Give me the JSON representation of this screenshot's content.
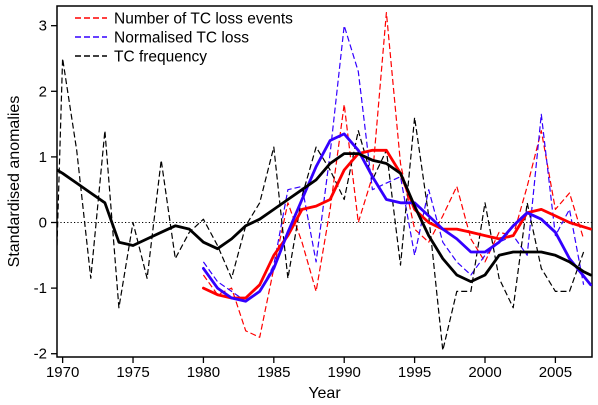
{
  "chart_data": {
    "type": "line",
    "title": "",
    "xlabel": "Year",
    "ylabel": "Standardised anomalies",
    "xlim": [
      1969.6,
      2007.6
    ],
    "ylim": [
      -2.05,
      3.3
    ],
    "xticks": [
      "1970",
      "1975",
      "1980",
      "1985",
      "1990",
      "1995",
      "2000",
      "2005"
    ],
    "yticks": [
      "-2",
      "-1",
      "0",
      "1",
      "2",
      "3"
    ],
    "xtick_values": [
      1970,
      1975,
      1980,
      1985,
      1990,
      1995,
      2000,
      2005
    ],
    "ytick_values": [
      -2,
      -1,
      0,
      1,
      2,
      3
    ],
    "reference_line": {
      "y": 0,
      "style": "dotted"
    },
    "grid": false,
    "legend_position": "top-left",
    "legend": [
      {
        "label": "Number of TC loss events",
        "color": "#ff0000",
        "style": "dashed"
      },
      {
        "label": "Normalised TC loss",
        "color": "#3300ff",
        "style": "dashed"
      },
      {
        "label": "TC frequency",
        "color": "#000000",
        "style": "dashed"
      }
    ],
    "series": [
      {
        "name": "Number of TC loss events",
        "color": "#ff0000",
        "style": "dashed",
        "x": [
          1980,
          1981,
          1982,
          1983,
          1984,
          1985,
          1986,
          1987,
          1988,
          1989,
          1990,
          1991,
          1992,
          1993,
          1994,
          1995,
          1996,
          1997,
          1998,
          1999,
          2000,
          2001,
          2002,
          2003,
          2004,
          2005,
          2006,
          2007
        ],
        "y": [
          -0.8,
          -1.1,
          -1.0,
          -1.65,
          -1.75,
          -0.7,
          0.3,
          -0.3,
          -1.05,
          0.2,
          1.8,
          0.0,
          0.7,
          3.2,
          0.9,
          -0.1,
          -0.3,
          0.1,
          0.55,
          -0.25,
          -0.6,
          -0.15,
          -0.2,
          0.55,
          1.4,
          0.2,
          0.45,
          -0.25
        ]
      },
      {
        "name": "Normalised TC loss",
        "color": "#3300ff",
        "style": "dashed",
        "x": [
          1980,
          1981,
          1982,
          1983,
          1984,
          1985,
          1986,
          1987,
          1988,
          1989,
          1990,
          1991,
          1992,
          1993,
          1994,
          1995,
          1996,
          1997,
          1998,
          1999,
          2000,
          2001,
          2002,
          2003,
          2004,
          2005,
          2006,
          2007
        ],
        "y": [
          -0.6,
          -0.9,
          -1.05,
          -1.2,
          -1.05,
          -0.65,
          0.5,
          0.55,
          -0.6,
          1.05,
          3.0,
          2.3,
          0.5,
          0.6,
          0.7,
          -0.5,
          0.5,
          -0.3,
          -0.6,
          -0.8,
          -0.5,
          -0.3,
          -0.2,
          -0.5,
          1.65,
          -0.2,
          0.2,
          -0.95
        ]
      },
      {
        "name": "TC frequency",
        "color": "#000000",
        "style": "dashed",
        "x": [
          1969.6,
          1970,
          1971,
          1972,
          1973,
          1974,
          1975,
          1976,
          1977,
          1978,
          1979,
          1980,
          1981,
          1982,
          1983,
          1984,
          1985,
          1986,
          1987,
          1988,
          1989,
          1990,
          1991,
          1992,
          1993,
          1994,
          1995,
          1996,
          1997,
          1998,
          1999,
          2000,
          2001,
          2002,
          2003,
          2004,
          2005,
          2006,
          2007
        ],
        "y": [
          -0.35,
          2.5,
          1.1,
          -0.85,
          1.4,
          -1.3,
          0.0,
          -0.85,
          0.95,
          -0.55,
          -0.15,
          0.05,
          -0.35,
          -0.85,
          -0.05,
          0.3,
          1.15,
          -0.85,
          0.4,
          1.15,
          0.8,
          0.35,
          1.4,
          0.65,
          1.1,
          -0.65,
          1.6,
          0.1,
          -1.95,
          -1.05,
          -1.05,
          0.3,
          -0.85,
          -1.3,
          0.3,
          -0.7,
          -1.05,
          -1.05,
          -0.45
        ]
      },
      {
        "name": "",
        "color": "#ff0000",
        "style": "solid",
        "x": [
          1980,
          1981,
          1982,
          1983,
          1984,
          1985,
          1986,
          1987,
          1988,
          1989,
          1990,
          1991,
          1992,
          1993,
          1994,
          1995,
          1996,
          1997,
          1998,
          1999,
          2000,
          2001,
          2002,
          2003,
          2004,
          2005,
          2006,
          2007.5
        ],
        "y": [
          -1.0,
          -1.1,
          -1.15,
          -1.15,
          -0.95,
          -0.5,
          -0.2,
          0.2,
          0.25,
          0.35,
          0.8,
          1.05,
          1.1,
          1.1,
          0.75,
          0.2,
          0.0,
          -0.1,
          -0.1,
          -0.15,
          -0.2,
          -0.25,
          -0.2,
          0.15,
          0.2,
          0.1,
          0.0,
          -0.1
        ]
      },
      {
        "name": "",
        "color": "#3300ff",
        "style": "solid",
        "x": [
          1980,
          1981,
          1982,
          1983,
          1984,
          1985,
          1986,
          1987,
          1988,
          1989,
          1990,
          1991,
          1992,
          1993,
          1994,
          1995,
          1996,
          1997,
          1998,
          1999,
          2000,
          2001,
          2002,
          2003,
          2004,
          2005,
          2006,
          2007.5
        ],
        "y": [
          -0.7,
          -1.0,
          -1.15,
          -1.2,
          -1.05,
          -0.7,
          -0.15,
          0.35,
          0.85,
          1.25,
          1.35,
          1.1,
          0.7,
          0.35,
          0.3,
          0.3,
          0.1,
          -0.1,
          -0.25,
          -0.45,
          -0.45,
          -0.3,
          -0.05,
          0.15,
          0.05,
          -0.15,
          -0.55,
          -0.95
        ]
      },
      {
        "name": "",
        "color": "#000000",
        "style": "solid",
        "x": [
          1969.6,
          1970,
          1971,
          1972,
          1973,
          1974,
          1975,
          1976,
          1977,
          1978,
          1979,
          1980,
          1981,
          1982,
          1983,
          1984,
          1985,
          1986,
          1987,
          1988,
          1989,
          1990,
          1991,
          1992,
          1993,
          1994,
          1995,
          1996,
          1997,
          1998,
          1999,
          2000,
          2001,
          2002,
          2003,
          2004,
          2005,
          2006,
          2007,
          2007.5
        ],
        "y": [
          0.8,
          0.75,
          0.6,
          0.45,
          0.3,
          -0.3,
          -0.35,
          -0.25,
          -0.15,
          -0.05,
          -0.1,
          -0.3,
          -0.4,
          -0.25,
          -0.05,
          0.05,
          0.2,
          0.35,
          0.5,
          0.65,
          0.9,
          1.05,
          1.05,
          0.95,
          0.9,
          0.75,
          0.25,
          -0.2,
          -0.55,
          -0.8,
          -0.9,
          -0.8,
          -0.5,
          -0.45,
          -0.45,
          -0.45,
          -0.5,
          -0.6,
          -0.75,
          -0.8
        ]
      }
    ]
  }
}
